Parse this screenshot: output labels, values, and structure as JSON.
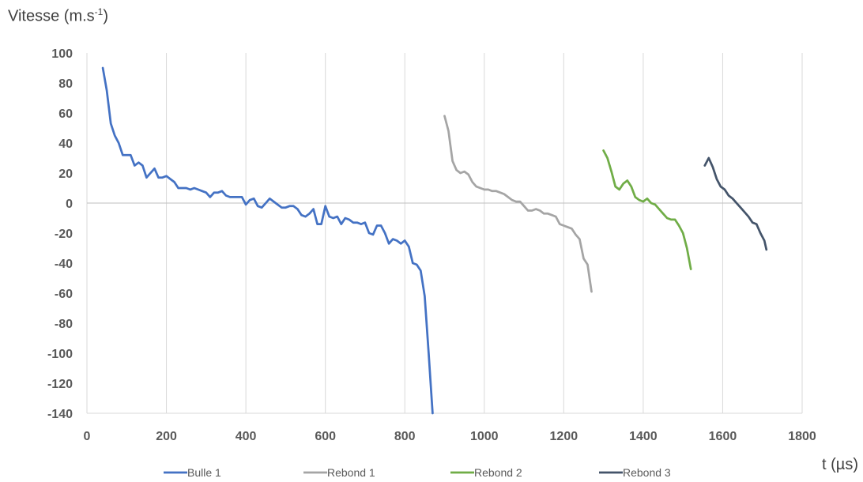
{
  "chart_data": {
    "type": "line",
    "ylabel": "Vitesse (m.s",
    "ylabel_exponent": "-1",
    "ylabel_suffix": ")",
    "xlabel": "t (µs)",
    "xlim": [
      0,
      1800
    ],
    "ylim": [
      -140,
      100
    ],
    "x_ticks": [
      0,
      200,
      400,
      600,
      800,
      1000,
      1200,
      1400,
      1600,
      1800
    ],
    "y_ticks": [
      100,
      80,
      60,
      40,
      20,
      0,
      -20,
      -40,
      -60,
      -80,
      -100,
      -120,
      -140
    ],
    "grid": "vertical",
    "legend_position": "bottom",
    "series": [
      {
        "name": "Bulle 1",
        "color": "#4472C4",
        "points": [
          [
            40,
            90
          ],
          [
            50,
            75
          ],
          [
            60,
            53
          ],
          [
            70,
            45
          ],
          [
            80,
            40
          ],
          [
            90,
            32
          ],
          [
            100,
            32
          ],
          [
            110,
            32
          ],
          [
            120,
            25
          ],
          [
            130,
            27
          ],
          [
            140,
            25
          ],
          [
            150,
            17
          ],
          [
            160,
            20
          ],
          [
            170,
            23
          ],
          [
            180,
            17
          ],
          [
            190,
            17
          ],
          [
            200,
            18
          ],
          [
            210,
            16
          ],
          [
            220,
            14
          ],
          [
            230,
            10
          ],
          [
            240,
            10
          ],
          [
            250,
            10
          ],
          [
            260,
            9
          ],
          [
            270,
            10
          ],
          [
            280,
            9
          ],
          [
            290,
            8
          ],
          [
            300,
            7
          ],
          [
            310,
            4
          ],
          [
            320,
            7
          ],
          [
            330,
            7
          ],
          [
            340,
            8
          ],
          [
            350,
            5
          ],
          [
            360,
            4
          ],
          [
            370,
            4
          ],
          [
            380,
            4
          ],
          [
            390,
            4
          ],
          [
            400,
            -1
          ],
          [
            410,
            2
          ],
          [
            420,
            3
          ],
          [
            430,
            -2
          ],
          [
            440,
            -3
          ],
          [
            450,
            0
          ],
          [
            460,
            3
          ],
          [
            470,
            1
          ],
          [
            480,
            -1
          ],
          [
            490,
            -3
          ],
          [
            500,
            -3
          ],
          [
            510,
            -2
          ],
          [
            520,
            -2
          ],
          [
            530,
            -4
          ],
          [
            540,
            -8
          ],
          [
            550,
            -9
          ],
          [
            560,
            -7
          ],
          [
            570,
            -4
          ],
          [
            580,
            -14
          ],
          [
            590,
            -14
          ],
          [
            600,
            -2
          ],
          [
            610,
            -9
          ],
          [
            620,
            -10
          ],
          [
            630,
            -9
          ],
          [
            640,
            -14
          ],
          [
            650,
            -10
          ],
          [
            660,
            -11
          ],
          [
            670,
            -13
          ],
          [
            680,
            -13
          ],
          [
            690,
            -14
          ],
          [
            700,
            -13
          ],
          [
            710,
            -20
          ],
          [
            720,
            -21
          ],
          [
            730,
            -15
          ],
          [
            740,
            -15
          ],
          [
            750,
            -20
          ],
          [
            760,
            -27
          ],
          [
            770,
            -24
          ],
          [
            780,
            -25
          ],
          [
            790,
            -27
          ],
          [
            800,
            -25
          ],
          [
            810,
            -29
          ],
          [
            820,
            -40
          ],
          [
            830,
            -41
          ],
          [
            840,
            -45
          ],
          [
            850,
            -62
          ],
          [
            860,
            -100
          ],
          [
            870,
            -140
          ]
        ]
      },
      {
        "name": "Rebond 1",
        "color": "#A5A5A5",
        "points": [
          [
            900,
            58
          ],
          [
            910,
            48
          ],
          [
            920,
            28
          ],
          [
            930,
            22
          ],
          [
            940,
            20
          ],
          [
            950,
            21
          ],
          [
            960,
            19
          ],
          [
            970,
            14
          ],
          [
            980,
            11
          ],
          [
            990,
            10
          ],
          [
            1000,
            9
          ],
          [
            1010,
            9
          ],
          [
            1020,
            8
          ],
          [
            1030,
            8
          ],
          [
            1040,
            7
          ],
          [
            1050,
            6
          ],
          [
            1060,
            4
          ],
          [
            1070,
            2
          ],
          [
            1080,
            1
          ],
          [
            1090,
            1
          ],
          [
            1100,
            -2
          ],
          [
            1110,
            -5
          ],
          [
            1120,
            -5
          ],
          [
            1130,
            -4
          ],
          [
            1140,
            -5
          ],
          [
            1150,
            -7
          ],
          [
            1160,
            -7
          ],
          [
            1170,
            -8
          ],
          [
            1180,
            -9
          ],
          [
            1190,
            -14
          ],
          [
            1200,
            -15
          ],
          [
            1210,
            -16
          ],
          [
            1220,
            -17
          ],
          [
            1230,
            -21
          ],
          [
            1240,
            -24
          ],
          [
            1250,
            -37
          ],
          [
            1260,
            -41
          ],
          [
            1270,
            -59
          ]
        ]
      },
      {
        "name": "Rebond 2",
        "color": "#70AD47",
        "points": [
          [
            1300,
            35
          ],
          [
            1310,
            30
          ],
          [
            1320,
            21
          ],
          [
            1330,
            11
          ],
          [
            1340,
            9
          ],
          [
            1350,
            13
          ],
          [
            1360,
            15
          ],
          [
            1370,
            11
          ],
          [
            1380,
            4
          ],
          [
            1390,
            2
          ],
          [
            1400,
            1
          ],
          [
            1410,
            3
          ],
          [
            1420,
            0
          ],
          [
            1430,
            -1
          ],
          [
            1440,
            -4
          ],
          [
            1450,
            -7
          ],
          [
            1460,
            -10
          ],
          [
            1470,
            -11
          ],
          [
            1480,
            -11
          ],
          [
            1490,
            -15
          ],
          [
            1500,
            -20
          ],
          [
            1510,
            -30
          ],
          [
            1520,
            -44
          ]
        ]
      },
      {
        "name": "Rebond 3",
        "color": "#44546A",
        "points": [
          [
            1555,
            25
          ],
          [
            1565,
            30
          ],
          [
            1575,
            24
          ],
          [
            1585,
            16
          ],
          [
            1595,
            11
          ],
          [
            1605,
            9
          ],
          [
            1615,
            5
          ],
          [
            1625,
            3
          ],
          [
            1635,
            0
          ],
          [
            1645,
            -3
          ],
          [
            1655,
            -6
          ],
          [
            1665,
            -9
          ],
          [
            1675,
            -13
          ],
          [
            1685,
            -14
          ],
          [
            1695,
            -20
          ],
          [
            1705,
            -25
          ],
          [
            1710,
            -31
          ]
        ]
      }
    ]
  }
}
